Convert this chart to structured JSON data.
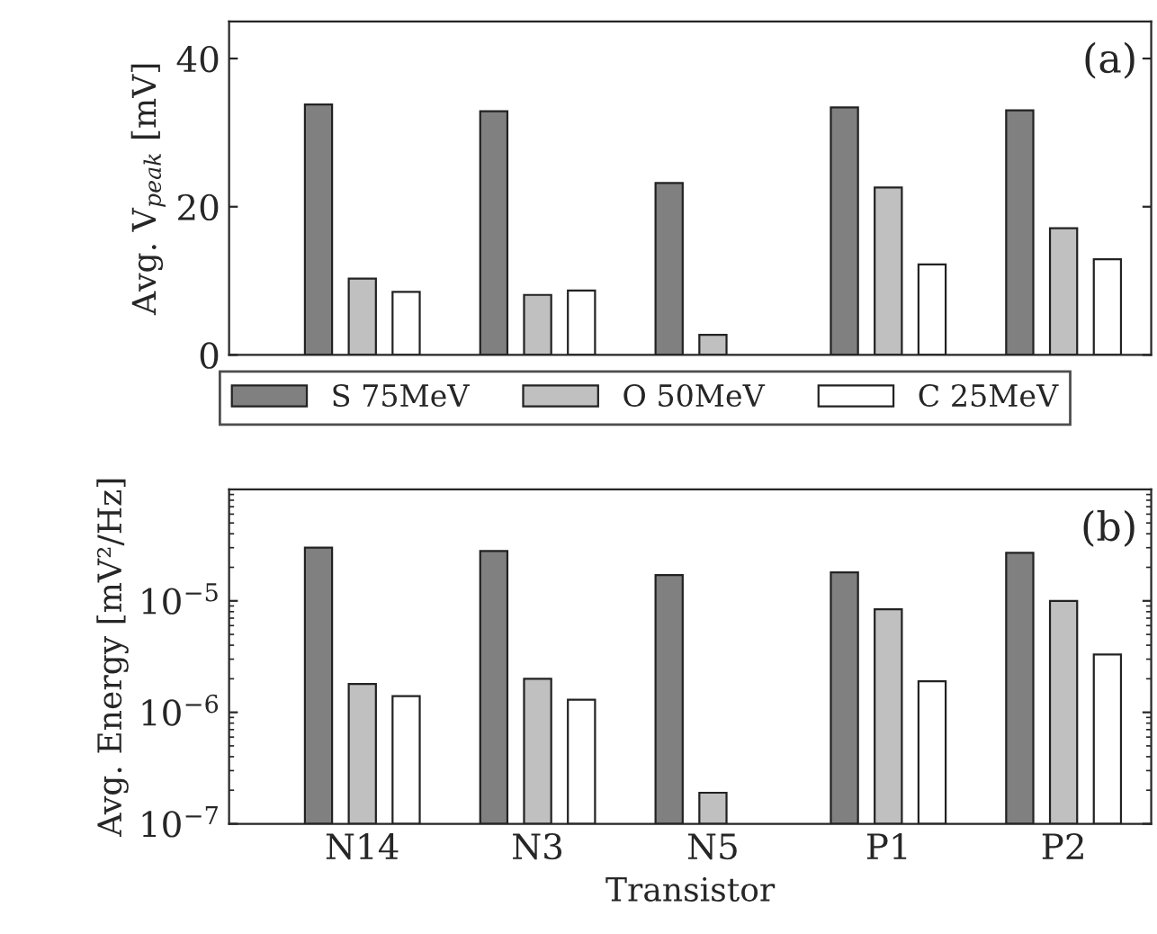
{
  "chart_data": [
    {
      "type": "bar",
      "ylabel": "Avg. V$_{peak}$ [mV]",
      "categories": [
        null,
        null,
        null,
        null,
        null
      ],
      "ylim": [
        0,
        45
      ],
      "yticks": [
        0,
        20,
        40
      ],
      "tick_labels": "y",
      "legend": "bottom",
      "annotations": [
        "(a)"
      ],
      "series": [
        {
          "name": "S 75MeV",
          "color": "#808080",
          "values": [
            33.8,
            32.9,
            23.2,
            33.4,
            33.0
          ]
        },
        {
          "name": "O 50MeV",
          "color": "#c0c0c0",
          "values": [
            10.3,
            8.1,
            2.7,
            22.6,
            17.1
          ]
        },
        {
          "name": "C 25MeV",
          "color": "#ffffff",
          "values": [
            8.5,
            8.7,
            null,
            12.2,
            12.9
          ]
        }
      ]
    },
    {
      "type": "bar",
      "ylabel": "Avg. Energy [mV²/Hz]",
      "xlabel": "Transistor",
      "categories": [
        "N14",
        "N3",
        "N5",
        "P1",
        "P2"
      ],
      "log": true,
      "ylim": [
        1e-07,
        0.0001
      ],
      "yticks": [
        {
          "value": 1e-07,
          "label": "10$^{−7}$"
        },
        {
          "value": 1e-06,
          "label": "10$^{−6}$"
        },
        {
          "value": 1e-05,
          "label": "10$^{−5}$"
        }
      ],
      "annotations": [
        "(b)"
      ],
      "series": [
        {
          "color": "#808080",
          "values": [
            3e-05,
            2.8e-05,
            1.7e-05,
            1.8e-05,
            2.7e-05
          ]
        },
        {
          "color": "#c0c0c0",
          "values": [
            1.8e-06,
            2e-06,
            1.9e-07,
            8.4e-06,
            1e-05
          ]
        },
        {
          "color": "#ffffff",
          "values": [
            1.4e-06,
            1.3e-06,
            null,
            1.9e-06,
            3.3e-06
          ]
        }
      ]
    }
  ]
}
